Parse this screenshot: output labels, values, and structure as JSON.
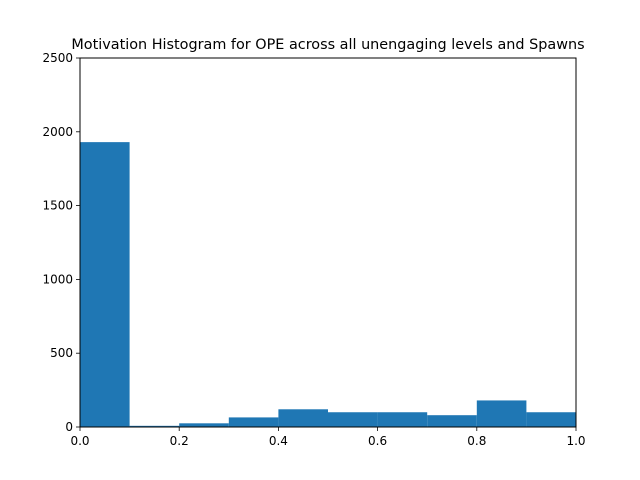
{
  "chart_data": {
    "type": "bar",
    "title": "Motivation Histogram for OPE across all unengaging levels and Spawns",
    "xlabel": "",
    "ylabel": "",
    "xlim": [
      0,
      1
    ],
    "ylim": [
      0,
      2500
    ],
    "grid": false,
    "bar_color": "#1f77b4",
    "bin_edges": [
      0.0,
      0.1,
      0.2,
      0.3,
      0.4,
      0.5,
      0.6,
      0.7,
      0.8,
      0.9,
      1.0
    ],
    "values": [
      1930,
      8,
      25,
      65,
      120,
      100,
      100,
      80,
      180,
      100
    ],
    "x_ticks": [
      "0.0",
      "0.2",
      "0.4",
      "0.6",
      "0.8",
      "1.0"
    ],
    "y_ticks": [
      "0",
      "500",
      "1000",
      "1500",
      "2000",
      "2500"
    ]
  }
}
